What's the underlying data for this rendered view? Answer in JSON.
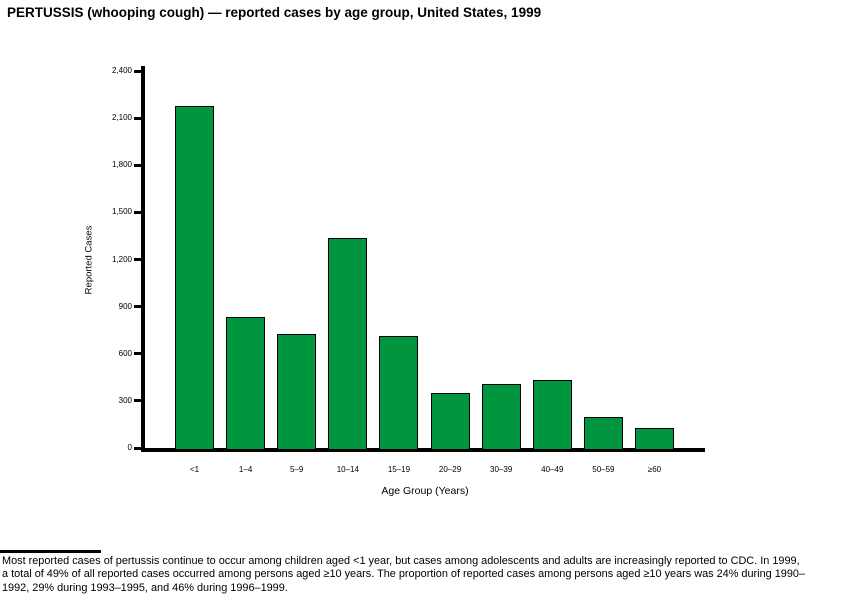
{
  "page": {
    "title": "PERTUSSIS (whooping cough) — reported cases by age group, United States, 1999"
  },
  "chart_data": {
    "type": "bar",
    "title": "PERTUSSIS (whooping cough) — reported cases by age group, United States, 1999",
    "categories": [
      "<1",
      "1–4",
      "5–9",
      "10–14",
      "15–19",
      "20–29",
      "30–39",
      "40–49",
      "50–59",
      "≥60"
    ],
    "values": [
      2175,
      835,
      725,
      1340,
      715,
      350,
      405,
      435,
      195,
      125
    ],
    "xlabel": "Age Group (Years)",
    "ylabel": "Reported Cases",
    "ylim": [
      0,
      2400
    ],
    "ytick_interval": 300,
    "ytick_labels": [
      "0",
      "300",
      "600",
      "900",
      "1,200",
      "1,500",
      "1,800",
      "2,100",
      "2,400"
    ],
    "grid": false,
    "legend": "none",
    "bar_color": "#009640",
    "bar_border_color": "#000000",
    "axis_color": "#000000"
  },
  "footnote": {
    "lines": [
      "Most reported cases of pertussis continue to occur among children aged <1 year, but cases among adolescents and adults are increasingly reported to CDC. In 1999,",
      "a total of 49% of all reported cases occurred among persons aged ≥10 years. The proportion of reported cases among persons aged ≥10 years was 24% during 1990–",
      "1992, 29% during 1993–1995, and 46% during 1996–1999."
    ]
  }
}
